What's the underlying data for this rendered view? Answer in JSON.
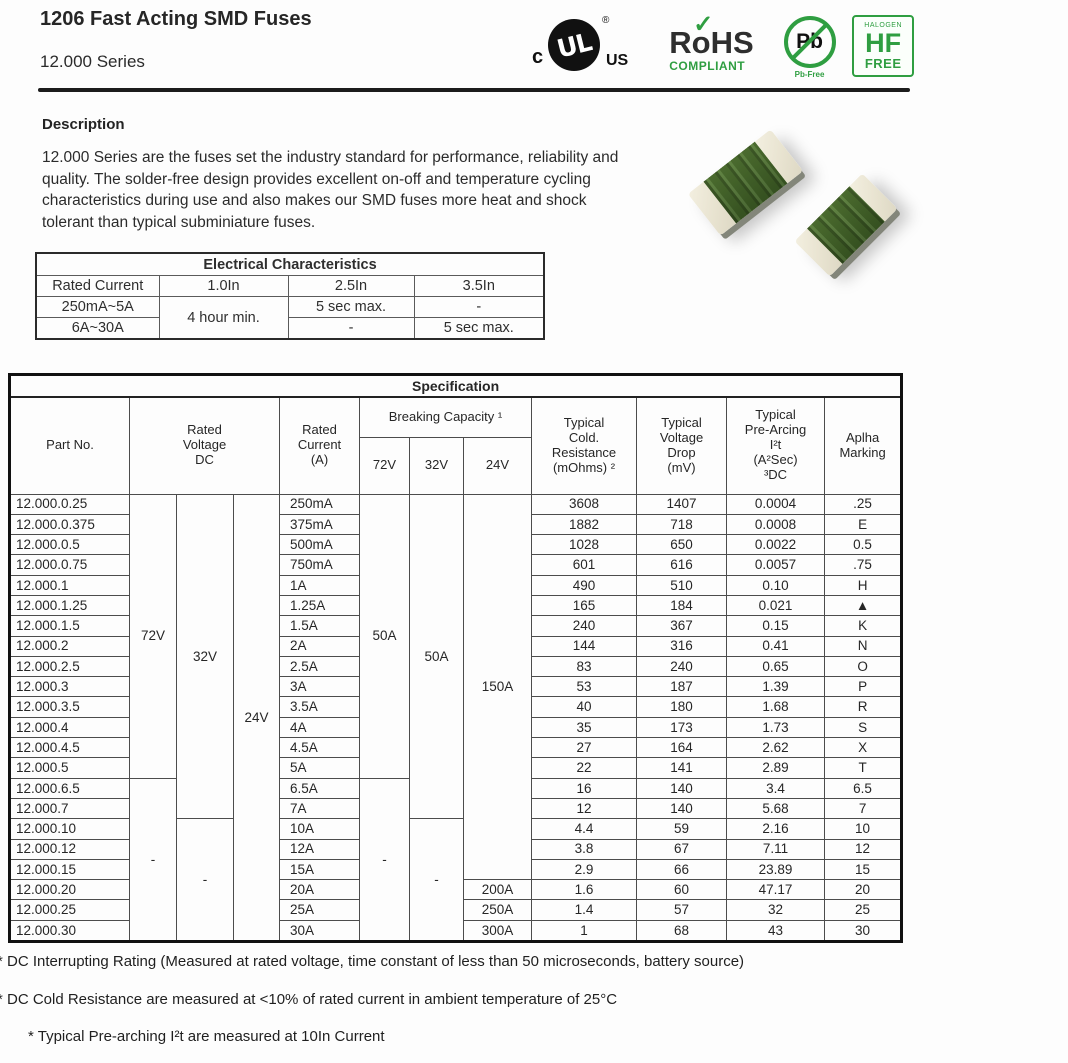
{
  "header": {
    "title": "1206 Fast Acting SMD Fuses",
    "series": "12.000 Series",
    "accent_green": "#2f9e41",
    "logos": {
      "ul": {
        "c": "c",
        "mark": "UL",
        "reg": "®",
        "us": "US"
      },
      "rohs": {
        "main": "RoHS",
        "check": "✓",
        "sub": "COMPLIANT"
      },
      "pb": {
        "symbol": "Pb",
        "sub": "Pb-Free"
      },
      "hf": {
        "top": "HALOGEN",
        "main": "HF",
        "sub": "FREE"
      }
    }
  },
  "description": {
    "heading": "Description",
    "body": "12.000 Series are the fuses set the industry standard for performance, reliability and\nquality. The solder-free design provides excellent on-off and temperature cycling\ncharacteristics during use and also makes our SMD fuses more heat and shock\ntolerant than typical subminiature fuses."
  },
  "elec_table": {
    "title": "Electrical Characteristics",
    "headers": [
      "Rated Current",
      "1.0In",
      "2.5In",
      "3.5In"
    ],
    "row1": {
      "range": "250mA~5A",
      "c1": "4 hour min.",
      "c2": "5 sec max.",
      "c3": "-"
    },
    "row2": {
      "range": "6A~30A",
      "c2": "-",
      "c3": "5 sec max."
    }
  },
  "spec_table": {
    "title": "Specification",
    "headers": {
      "part_no": "Part No.",
      "rated_voltage": "Rated\nVoltage\nDC",
      "rated_current": "Rated\nCurrent\n(A)",
      "breaking_capacity": "Breaking Capacity ¹",
      "breaking_voltages": [
        "72V",
        "32V",
        "24V"
      ],
      "cold_resistance": "Typical\nCold.\nResistance\n(mOhms) ²",
      "voltage_drop": "Typical\nVoltage\nDrop\n(mV)",
      "pre_arcing": "Typical\nPre-Arcing\nI²t\n(A²Sec)\n³DC",
      "alpha_marking": "Aplha\nMarking"
    },
    "voltage_col1": [
      {
        "label": "72V",
        "span": 14
      },
      {
        "label": "-",
        "span": 8
      }
    ],
    "voltage_col2": [
      {
        "label": "32V",
        "span": 16
      },
      {
        "label": "-",
        "span": 6
      }
    ],
    "voltage_col3": [
      {
        "label": "24V",
        "span": 22
      }
    ],
    "breaking_col1": [
      {
        "label": "50A",
        "span": 14
      },
      {
        "label": "-",
        "span": 8
      }
    ],
    "breaking_col2": [
      {
        "label": "50A",
        "span": 16
      },
      {
        "label": "-",
        "span": 6
      }
    ],
    "breaking_col3": [
      {
        "label": "150A",
        "span": 19
      },
      {
        "label": "200A",
        "span": 1
      },
      {
        "label": "250A",
        "span": 1
      },
      {
        "label": "300A",
        "span": 1
      }
    ],
    "rows": [
      {
        "part": "12.000.0.25",
        "current": "250mA",
        "cold": "3608",
        "drop": "1407",
        "prearc": "0.0004",
        "alpha": ".25"
      },
      {
        "part": "12.000.0.375",
        "current": "375mA",
        "cold": "1882",
        "drop": "718",
        "prearc": "0.0008",
        "alpha": "E"
      },
      {
        "part": "12.000.0.5",
        "current": "500mA",
        "cold": "1028",
        "drop": "650",
        "prearc": "0.0022",
        "alpha": "0.5"
      },
      {
        "part": "12.000.0.75",
        "current": "750mA",
        "cold": "601",
        "drop": "616",
        "prearc": "0.0057",
        "alpha": ".75"
      },
      {
        "part": "12.000.1",
        "current": "1A",
        "cold": "490",
        "drop": "510",
        "prearc": "0.10",
        "alpha": "H"
      },
      {
        "part": "12.000.1.25",
        "current": "1.25A",
        "cold": "165",
        "drop": "184",
        "prearc": "0.021",
        "alpha": "▲"
      },
      {
        "part": "12.000.1.5",
        "current": "1.5A",
        "cold": "240",
        "drop": "367",
        "prearc": "0.15",
        "alpha": "K"
      },
      {
        "part": "12.000.2",
        "current": "2A",
        "cold": "144",
        "drop": "316",
        "prearc": "0.41",
        "alpha": "N"
      },
      {
        "part": "12.000.2.5",
        "current": "2.5A",
        "cold": "83",
        "drop": "240",
        "prearc": "0.65",
        "alpha": "O"
      },
      {
        "part": "12.000.3",
        "current": "3A",
        "cold": "53",
        "drop": "187",
        "prearc": "1.39",
        "alpha": "P"
      },
      {
        "part": "12.000.3.5",
        "current": "3.5A",
        "cold": "40",
        "drop": "180",
        "prearc": "1.68",
        "alpha": "R"
      },
      {
        "part": "12.000.4",
        "current": "4A",
        "cold": "35",
        "drop": "173",
        "prearc": "1.73",
        "alpha": "S"
      },
      {
        "part": "12.000.4.5",
        "current": "4.5A",
        "cold": "27",
        "drop": "164",
        "prearc": "2.62",
        "alpha": "X"
      },
      {
        "part": "12.000.5",
        "current": "5A",
        "cold": "22",
        "drop": "141",
        "prearc": "2.89",
        "alpha": "T"
      },
      {
        "part": "12.000.6.5",
        "current": "6.5A",
        "cold": "16",
        "drop": "140",
        "prearc": "3.4",
        "alpha": "6.5"
      },
      {
        "part": "12.000.7",
        "current": "7A",
        "cold": "12",
        "drop": "140",
        "prearc": "5.68",
        "alpha": "7"
      },
      {
        "part": "12.000.10",
        "current": "10A",
        "cold": "4.4",
        "drop": "59",
        "prearc": "2.16",
        "alpha": "10"
      },
      {
        "part": "12.000.12",
        "current": "12A",
        "cold": "3.8",
        "drop": "67",
        "prearc": "7.11",
        "alpha": "12"
      },
      {
        "part": "12.000.15",
        "current": "15A",
        "cold": "2.9",
        "drop": "66",
        "prearc": "23.89",
        "alpha": "15"
      },
      {
        "part": "12.000.20",
        "current": "20A",
        "cold": "1.6",
        "drop": "60",
        "prearc": "47.17",
        "alpha": "20"
      },
      {
        "part": "12.000.25",
        "current": "25A",
        "cold": "1.4",
        "drop": "57",
        "prearc": "32",
        "alpha": "25"
      },
      {
        "part": "12.000.30",
        "current": "30A",
        "cold": "1",
        "drop": "68",
        "prearc": "43",
        "alpha": "30"
      }
    ]
  },
  "footnotes": [
    "* DC Interrupting Rating (Measured at rated voltage, time constant of less than 50 microseconds, battery source)",
    "* DC Cold Resistance are measured at <10% of rated current in ambient temperature of 25°C",
    "* Typical Pre-arching I²t are measured at 10In Current"
  ]
}
